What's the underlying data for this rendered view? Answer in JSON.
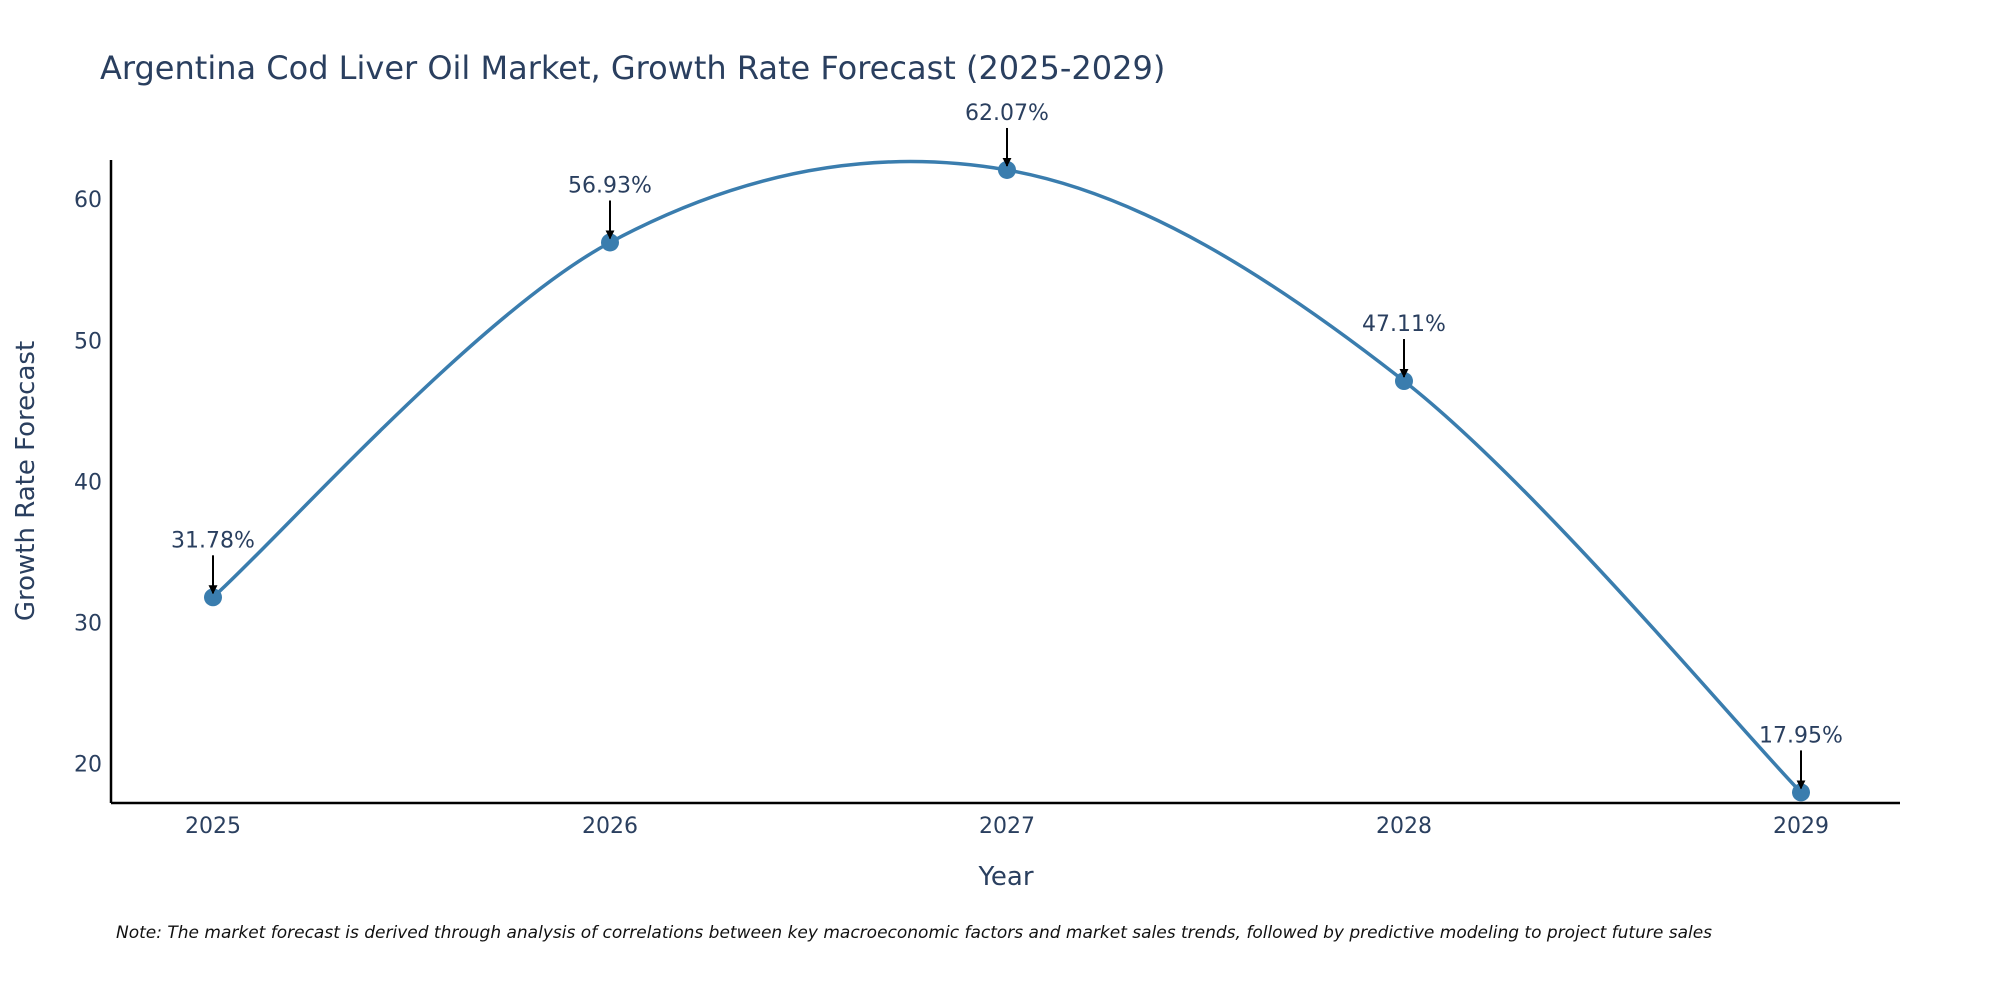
{
  "chart_data": {
    "type": "line",
    "title": "Argentina Cod Liver Oil Market, Growth Rate Forecast (2025-2029)",
    "xlabel": "Year",
    "ylabel": "Growth Rate Forecast",
    "categories": [
      "2025",
      "2026",
      "2027",
      "2028",
      "2029"
    ],
    "series": [
      {
        "name": "Growth Rate Forecast",
        "values": [
          31.78,
          56.93,
          62.07,
          47.11,
          17.95
        ],
        "color": "#3a7dae"
      }
    ],
    "data_labels": [
      "31.78%",
      "56.93%",
      "62.07%",
      "47.11%",
      "17.95%"
    ],
    "yticks": [
      20,
      30,
      40,
      50,
      60
    ],
    "ylim": [
      17.2,
      62.6
    ],
    "grid": false,
    "line_shape": "spline"
  },
  "note": "Note: The market forecast is derived through analysis of correlations between key macroeconomic factors and market sales trends, followed by predictive modeling to project future sales"
}
